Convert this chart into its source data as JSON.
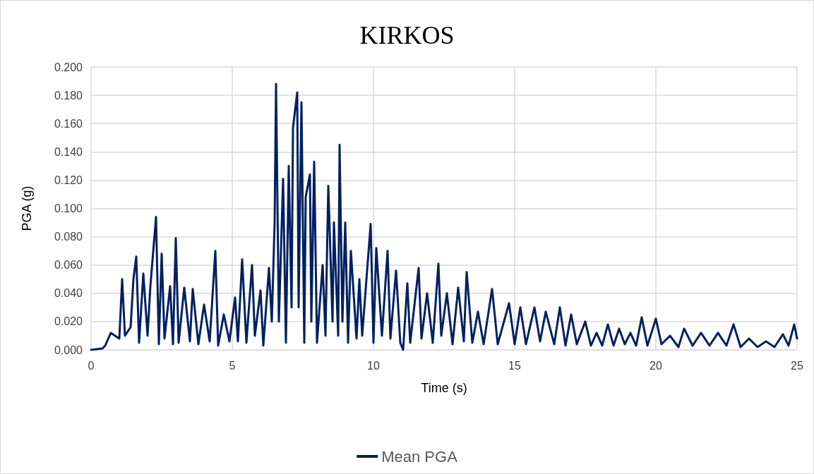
{
  "chart_data": {
    "type": "line",
    "title": "KIRKOS",
    "xlabel": "Time (s)",
    "ylabel": "PGA (g)",
    "xlim": [
      0,
      25
    ],
    "xticks": [
      0,
      5,
      10,
      15,
      20,
      25
    ],
    "ylim": [
      0,
      0.2
    ],
    "yticks": [
      {
        "value": 0,
        "label": "0.000"
      },
      {
        "value": 0.02,
        "label": "0.020"
      },
      {
        "value": 0.04,
        "label": "0.040"
      },
      {
        "value": 0.06,
        "label": "0.060"
      },
      {
        "value": 0.08,
        "label": "0.080"
      },
      {
        "value": 0.1,
        "label": "0.100"
      },
      {
        "value": 0.12,
        "label": "0.120"
      },
      {
        "value": 0.14,
        "label": "0.140"
      },
      {
        "value": 0.16,
        "label": "0.160"
      },
      {
        "value": 0.18,
        "label": "0.180"
      },
      {
        "value": 0.2,
        "label": "0.200"
      }
    ],
    "grid": true,
    "legend": "bottom",
    "marker": "none",
    "line_style": "solid",
    "x": [
      0,
      0.4,
      0.5,
      0.7,
      1.0,
      1.1,
      1.2,
      1.4,
      1.5,
      1.6,
      1.7,
      1.85,
      2.0,
      2.1,
      2.3,
      2.4,
      2.5,
      2.6,
      2.8,
      2.9,
      3.0,
      3.1,
      3.3,
      3.5,
      3.6,
      3.8,
      4.0,
      4.2,
      4.4,
      4.5,
      4.7,
      4.9,
      5.1,
      5.2,
      5.35,
      5.5,
      5.7,
      5.8,
      6.0,
      6.1,
      6.3,
      6.4,
      6.5,
      6.55,
      6.65,
      6.8,
      6.9,
      7.0,
      7.1,
      7.15,
      7.3,
      7.35,
      7.45,
      7.55,
      7.6,
      7.75,
      7.8,
      7.9,
      8.0,
      8.2,
      8.3,
      8.4,
      8.55,
      8.6,
      8.75,
      8.8,
      8.9,
      9.0,
      9.1,
      9.2,
      9.4,
      9.5,
      9.6,
      9.9,
      10.0,
      10.1,
      10.3,
      10.5,
      10.6,
      10.8,
      10.95,
      11.05,
      11.2,
      11.3,
      11.6,
      11.7,
      11.9,
      12.1,
      12.3,
      12.4,
      12.6,
      12.8,
      13.0,
      13.2,
      13.3,
      13.5,
      13.7,
      13.9,
      14.2,
      14.4,
      14.8,
      15.0,
      15.2,
      15.4,
      15.7,
      15.9,
      16.1,
      16.4,
      16.6,
      16.8,
      17.0,
      17.2,
      17.5,
      17.7,
      17.9,
      18.1,
      18.3,
      18.5,
      18.7,
      18.9,
      19.1,
      19.3,
      19.5,
      19.7,
      20.0,
      20.2,
      20.5,
      20.8,
      21.0,
      21.3,
      21.6,
      21.9,
      22.2,
      22.5,
      22.75,
      23.0,
      23.3,
      23.6,
      23.9,
      24.2,
      24.5,
      24.7,
      24.9,
      25.0
    ],
    "series": [
      {
        "name": "Mean PGA",
        "color": "#002060",
        "values": [
          0,
          0.001,
          0.003,
          0.012,
          0.008,
          0.05,
          0.01,
          0.016,
          0.05,
          0.066,
          0.005,
          0.054,
          0.01,
          0.045,
          0.094,
          0.004,
          0.068,
          0.008,
          0.045,
          0.004,
          0.079,
          0.005,
          0.044,
          0.006,
          0.043,
          0.004,
          0.032,
          0.006,
          0.07,
          0.003,
          0.025,
          0.006,
          0.037,
          0.006,
          0.064,
          0.005,
          0.06,
          0.01,
          0.042,
          0.003,
          0.058,
          0.02,
          0.09,
          0.188,
          0.02,
          0.121,
          0.005,
          0.13,
          0.03,
          0.157,
          0.182,
          0.03,
          0.175,
          0.005,
          0.108,
          0.124,
          0.02,
          0.133,
          0.005,
          0.06,
          0.01,
          0.116,
          0.02,
          0.09,
          0.01,
          0.145,
          0.02,
          0.09,
          0.005,
          0.07,
          0.008,
          0.05,
          0.01,
          0.089,
          0.005,
          0.072,
          0.01,
          0.07,
          0.008,
          0.056,
          0.005,
          0.0,
          0.047,
          0.005,
          0.058,
          0.008,
          0.04,
          0.005,
          0.061,
          0.01,
          0.04,
          0.004,
          0.044,
          0.006,
          0.055,
          0.005,
          0.027,
          0.004,
          0.043,
          0.004,
          0.033,
          0.004,
          0.03,
          0.004,
          0.03,
          0.006,
          0.027,
          0.004,
          0.03,
          0.003,
          0.025,
          0.004,
          0.02,
          0.003,
          0.012,
          0.003,
          0.018,
          0.003,
          0.015,
          0.004,
          0.012,
          0.003,
          0.023,
          0.003,
          0.022,
          0.004,
          0.01,
          0.002,
          0.015,
          0.003,
          0.012,
          0.003,
          0.012,
          0.003,
          0.018,
          0.002,
          0.008,
          0.002,
          0.006,
          0.002,
          0.011,
          0.003,
          0.018,
          0.008
        ]
      }
    ]
  }
}
